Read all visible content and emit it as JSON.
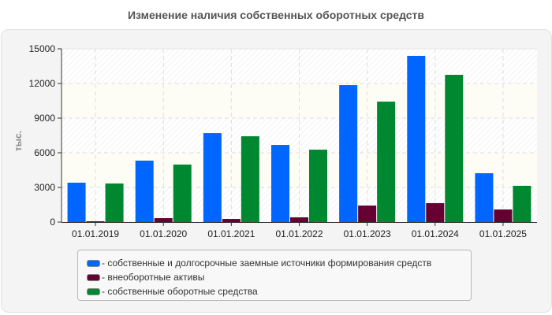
{
  "title": "Изменение наличия собственных оборотных средств",
  "y_axis_label": "тыс.",
  "colors": {
    "series1": "#0066ff",
    "series2": "#660033",
    "series3": "#008830",
    "panel_bg": "#f4f4f4",
    "band_alt": "#fdfdf5"
  },
  "legend": [
    {
      "label": "- собственные и долгосрочные заемные источники формирования средств",
      "color": "#0066ff"
    },
    {
      "label": "- внеоборотные активы",
      "color": "#660033"
    },
    {
      "label": "- собственные оборотные средства",
      "color": "#008830"
    }
  ],
  "chart_data": {
    "type": "bar",
    "title": "Изменение наличия собственных оборотных средств",
    "xlabel": "",
    "ylabel": "тыс.",
    "ylim": [
      0,
      15000
    ],
    "yticks": [
      0,
      3000,
      6000,
      9000,
      12000,
      15000
    ],
    "grid": true,
    "legend_position": "bottom",
    "categories": [
      "01.01.2019",
      "01.01.2020",
      "01.01.2021",
      "01.01.2022",
      "01.01.2023",
      "01.01.2024",
      "01.01.2025"
    ],
    "series": [
      {
        "name": "собственные и долгосрочные заемные источники формирования средств",
        "color": "#0066ff",
        "values": [
          3410,
          5320,
          7700,
          6680,
          11860,
          14390,
          4230
        ]
      },
      {
        "name": "внеоборотные активы",
        "color": "#660033",
        "values": [
          70,
          340,
          270,
          410,
          1430,
          1640,
          1090
        ]
      },
      {
        "name": "собственные оборотные средства",
        "color": "#008830",
        "values": [
          3340,
          4980,
          7430,
          6270,
          10430,
          12750,
          3140
        ]
      }
    ]
  }
}
